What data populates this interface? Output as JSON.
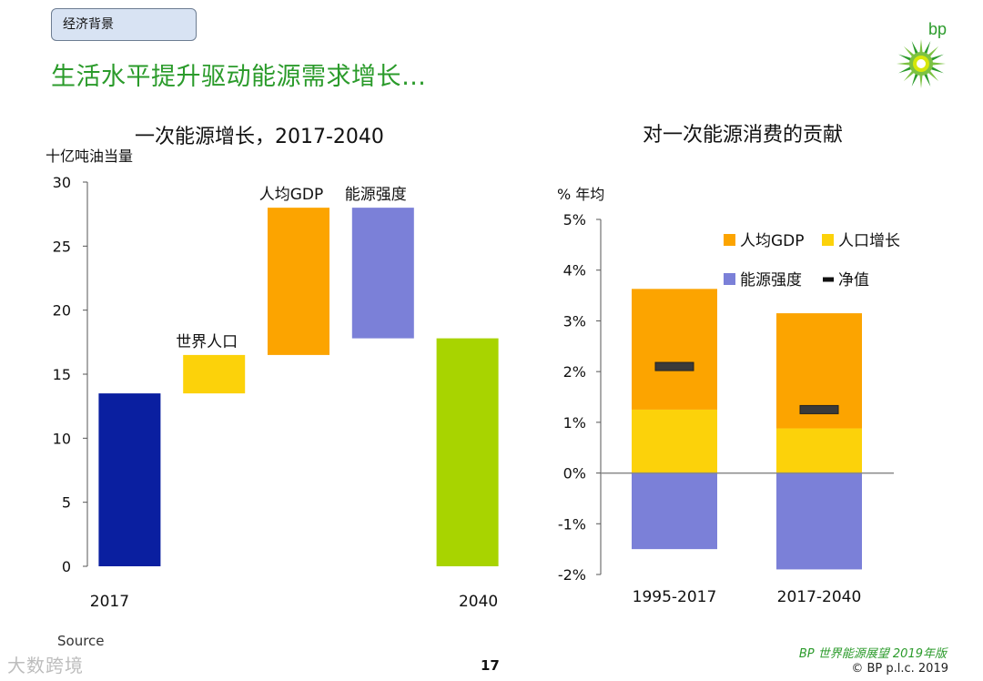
{
  "header": {
    "section_tag": "经济背景",
    "headline": "生活水平提升驱动能源需求增长…",
    "logo_text": "bp"
  },
  "colors": {
    "headline_green": "#2b9b2b",
    "population": "#fcd20a",
    "gdp_per_capita": "#fca400",
    "energy_intensity": "#7b80d8",
    "start_bar": "#0a1fa0",
    "end_bar": "#a8d400",
    "net_marker": "#3a3a3a"
  },
  "chart_data": [
    {
      "type": "waterfall",
      "title": "一次能源增长，2017-2040",
      "ylabel": "十亿吨油当量",
      "ylim": [
        0,
        30
      ],
      "yticks": [
        0,
        5,
        10,
        15,
        20,
        25,
        30
      ],
      "bars": [
        {
          "label": "2017",
          "label_position": "below",
          "start": 0,
          "end": 13.5,
          "color": "#0a1fa0"
        },
        {
          "label": "世界人口",
          "label_position": "above",
          "start": 13.5,
          "end": 16.5,
          "color": "#fcd20a"
        },
        {
          "label": "人均GDP",
          "label_position": "above",
          "start": 16.5,
          "end": 28.0,
          "color": "#fca400"
        },
        {
          "label": "能源强度",
          "label_position": "above",
          "start": 17.8,
          "end": 28.0,
          "color": "#7b80d8"
        },
        {
          "label": "2040",
          "label_position": "below",
          "start": 0,
          "end": 17.8,
          "color": "#a8d400"
        }
      ]
    },
    {
      "type": "stacked_bar",
      "title": "对一次能源消费的贡献",
      "ylabel": "% 年均",
      "ylim": [
        -2,
        5
      ],
      "yticks": [
        -2,
        -1,
        0,
        1,
        2,
        3,
        4,
        5
      ],
      "ytick_labels": [
        "-2%",
        "-1%",
        "0%",
        "1%",
        "2%",
        "3%",
        "4%",
        "5%"
      ],
      "categories": [
        "1995-2017",
        "2017-2040"
      ],
      "series": [
        {
          "name": "人口增长",
          "values": [
            1.25,
            0.88
          ],
          "color": "#fcd20a"
        },
        {
          "name": "人均GDP",
          "values": [
            2.38,
            2.27
          ],
          "color": "#fca400"
        },
        {
          "name": "能源强度",
          "values": [
            -1.5,
            -1.9
          ],
          "color": "#7b80d8"
        }
      ],
      "net": {
        "name": "净值",
        "values": [
          2.1,
          1.25
        ]
      },
      "legend": [
        "人均GDP",
        "人口增长",
        "能源强度",
        "净值"
      ]
    }
  ],
  "footer": {
    "source": "Source",
    "page_number": "17",
    "publication": "BP 世界能源展望 2019年版",
    "copyright": "© BP p.l.c. 2019",
    "watermark": "大数跨境"
  }
}
